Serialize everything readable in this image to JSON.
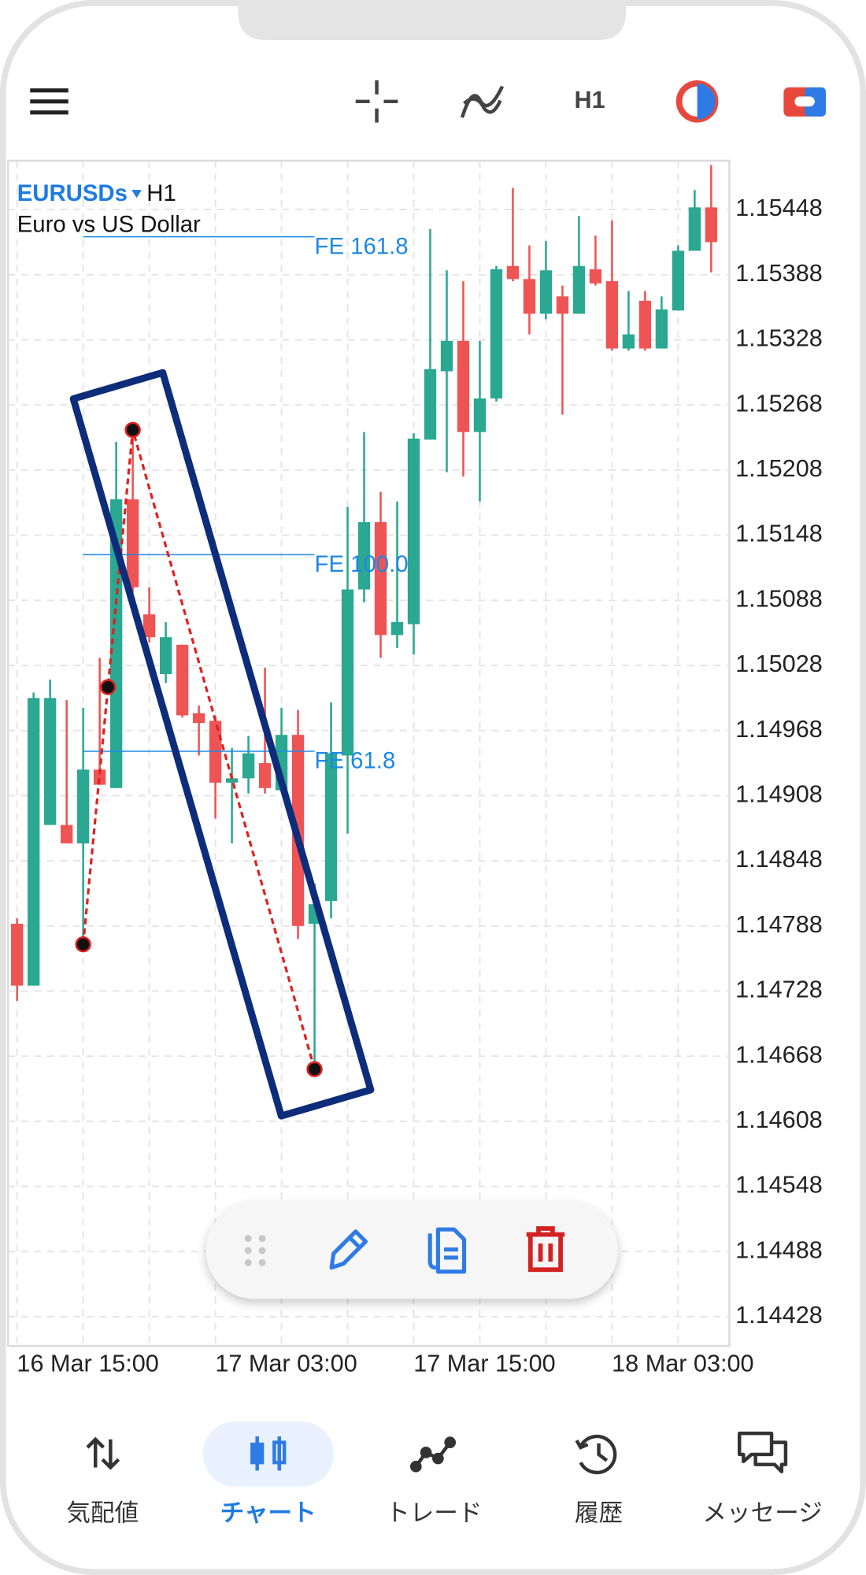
{
  "app_bar": {
    "timeframe": "H1"
  },
  "chart_data": {
    "type": "candlestick",
    "symbol": "EURUSDs",
    "timeframe": "H1",
    "description": "Euro vs US Dollar",
    "categories": [
      null,
      null,
      null,
      null,
      "16 Mar 15:00",
      null,
      null,
      null,
      null,
      null,
      null,
      null,
      null,
      null,
      null,
      null,
      "17 Mar 03:00",
      null,
      null,
      null,
      null,
      null,
      null,
      null,
      null,
      null,
      null,
      null,
      "17 Mar 15:00",
      null,
      null,
      null,
      null,
      null,
      null,
      null,
      null,
      null,
      null,
      null,
      "18 Mar 03:00",
      null,
      null
    ],
    "open": [
      1.1479,
      1.14733,
      1.14881,
      1.14881,
      1.14864,
      1.14932,
      1.14915,
      1.15181,
      1.15075,
      1.1502,
      1.15047,
      1.14984,
      1.14977,
      1.1492,
      1.14924,
      1.14938,
      1.14913,
      1.14964,
      1.1479,
      1.14811,
      1.14945,
      1.15098,
      1.1516,
      1.15056,
      1.15066,
      1.15236,
      1.15299,
      1.15327,
      1.15243,
      1.15274,
      1.15396,
      1.15384,
      1.15352,
      1.15368,
      1.15352,
      1.15393,
      1.15382,
      1.1532,
      1.15364,
      1.1532,
      1.15355,
      1.1541,
      1.1545
    ],
    "high": [
      1.14795,
      1.15003,
      1.15015,
      1.14996,
      1.14989,
      1.15035,
      1.15234,
      1.15245,
      1.151,
      1.15068,
      1.15047,
      1.14991,
      1.14981,
      1.14952,
      1.14963,
      1.15026,
      1.14989,
      1.14987,
      1.14827,
      1.14994,
      1.15174,
      1.15243,
      1.15188,
      1.15179,
      1.15242,
      1.1543,
      1.15392,
      1.15382,
      1.15327,
      1.15396,
      1.15468,
      1.15415,
      1.15419,
      1.15378,
      1.15442,
      1.15424,
      1.15438,
      1.15373,
      1.15373,
      1.15368,
      1.15415,
      1.15466,
      1.15489
    ],
    "low": [
      1.14719,
      1.14733,
      1.14881,
      1.14864,
      1.14771,
      1.14918,
      1.14915,
      1.15095,
      1.15049,
      1.15012,
      1.1498,
      1.14945,
      1.14887,
      1.14864,
      1.1491,
      1.1491,
      1.14913,
      1.14776,
      1.14656,
      1.14795,
      1.14873,
      1.15086,
      1.15035,
      1.15044,
      1.15038,
      1.15236,
      1.15206,
      1.15202,
      1.15179,
      1.15271,
      1.15382,
      1.15333,
      1.15347,
      1.15259,
      1.15352,
      1.15378,
      1.15318,
      1.15318,
      1.15318,
      1.1532,
      1.15355,
      1.1541,
      1.1539
    ],
    "close": [
      1.14733,
      1.14998,
      1.14998,
      1.14864,
      1.14932,
      1.14918,
      1.15181,
      1.151,
      1.15054,
      1.15054,
      1.14982,
      1.14975,
      1.1492,
      1.14924,
      1.14947,
      1.14915,
      1.14964,
      1.14788,
      1.14808,
      1.14947,
      1.15098,
      1.1516,
      1.15056,
      1.15068,
      1.15237,
      1.15301,
      1.15327,
      1.15243,
      1.15274,
      1.15393,
      1.15384,
      1.15352,
      1.15392,
      1.15352,
      1.15396,
      1.1538,
      1.1532,
      1.15333,
      1.1532,
      1.15356,
      1.1541,
      1.1545,
      1.15418
    ],
    "up_color": "#2aa891",
    "down_color": "#ef5454",
    "ylim": [
      1.14401,
      1.15493
    ],
    "yticks": [
      1.15448,
      1.15388,
      1.15328,
      1.15268,
      1.15208,
      1.15148,
      1.15088,
      1.15028,
      1.14968,
      1.14908,
      1.14848,
      1.14788,
      1.14728,
      1.14668,
      1.14608,
      1.14548,
      1.14488,
      1.14428
    ],
    "grid": true,
    "fibonacci_expansion": {
      "color": "#1e88e5",
      "line_color": "#e02020",
      "points": [
        {
          "index": 4,
          "price": 1.14771
        },
        {
          "index": 7,
          "price": 1.15245
        },
        {
          "index": 18,
          "price": 1.14656
        }
      ],
      "levels": [
        {
          "value": 161.8,
          "label": "FE 161.8"
        },
        {
          "value": 100.0,
          "label": "FE 100.0"
        },
        {
          "value": 61.8,
          "label": "FE 61.8"
        }
      ]
    }
  },
  "bottom_nav": {
    "items": [
      "気配値",
      "チャート",
      "トレード",
      "履歴",
      "メッセージ"
    ],
    "active": 1
  }
}
